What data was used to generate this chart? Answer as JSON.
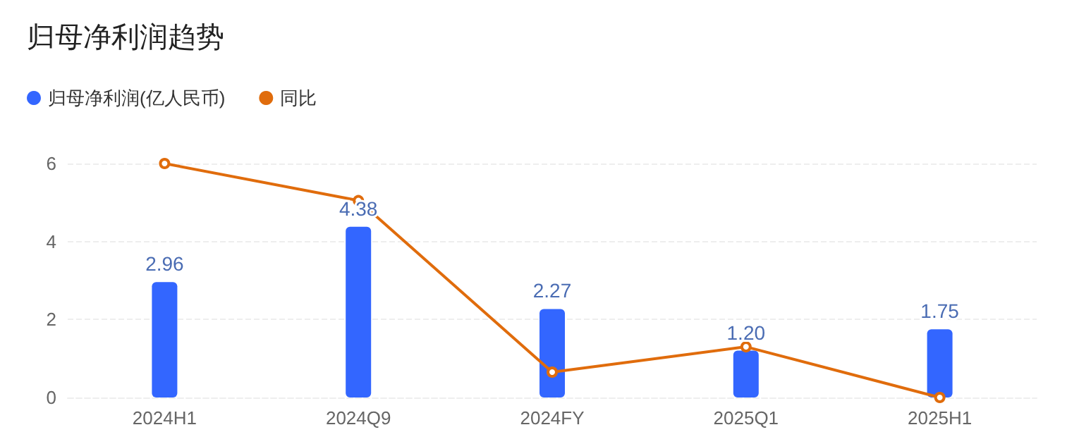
{
  "chart_data": {
    "type": "bar",
    "title": "归母净利润趋势",
    "categories": [
      "2024H1",
      "2024Q9",
      "2024FY",
      "2025Q1",
      "2025H1"
    ],
    "series": [
      {
        "name": "归母净利润(亿人民币)",
        "color": "#3366ff",
        "values": [
          2.96,
          4.38,
          2.27,
          1.2,
          1.75
        ],
        "value_labels": [
          "2.96",
          "4.38",
          "2.27",
          "1.20",
          "1.75"
        ]
      },
      {
        "name": "同比",
        "type": "line",
        "color": "#e06c0c",
        "values": [
          6,
          5.05,
          0.65,
          1.3,
          0
        ],
        "marker": "circle"
      }
    ],
    "ylim": [
      0,
      6
    ],
    "yticks": [
      0,
      2,
      4,
      6
    ],
    "grid": "y",
    "legend": "top left"
  }
}
